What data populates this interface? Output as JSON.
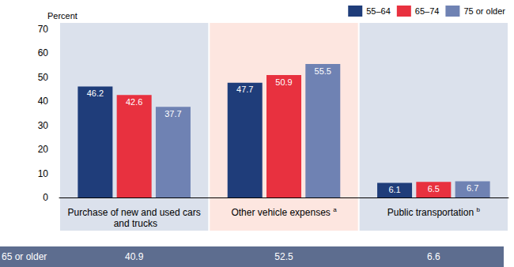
{
  "chart_data": {
    "type": "bar",
    "y_label": "Percent",
    "categories": [
      "Purchase of new and used cars and trucks",
      "Other vehicle expenses",
      "Public transportation"
    ],
    "category_notes": [
      null,
      "a",
      "b"
    ],
    "series": [
      {
        "name": "55–64",
        "color": "#1f3d7a",
        "values": [
          46.2,
          47.7,
          6.1
        ]
      },
      {
        "name": "65–74",
        "color": "#e8313f",
        "values": [
          42.6,
          50.9,
          6.5
        ]
      },
      {
        "name": "75 or older",
        "color": "#6f82b3",
        "values": [
          37.7,
          55.5,
          6.7
        ]
      }
    ],
    "ylim": [
      0,
      70
    ],
    "yticks": [
      0,
      10,
      20,
      30,
      40,
      50,
      60,
      70
    ],
    "grid": false,
    "legend": "top-right",
    "data_labels": true,
    "summary_row": {
      "label": "65 or older",
      "values": [
        40.9,
        52.5,
        6.6
      ]
    }
  }
}
